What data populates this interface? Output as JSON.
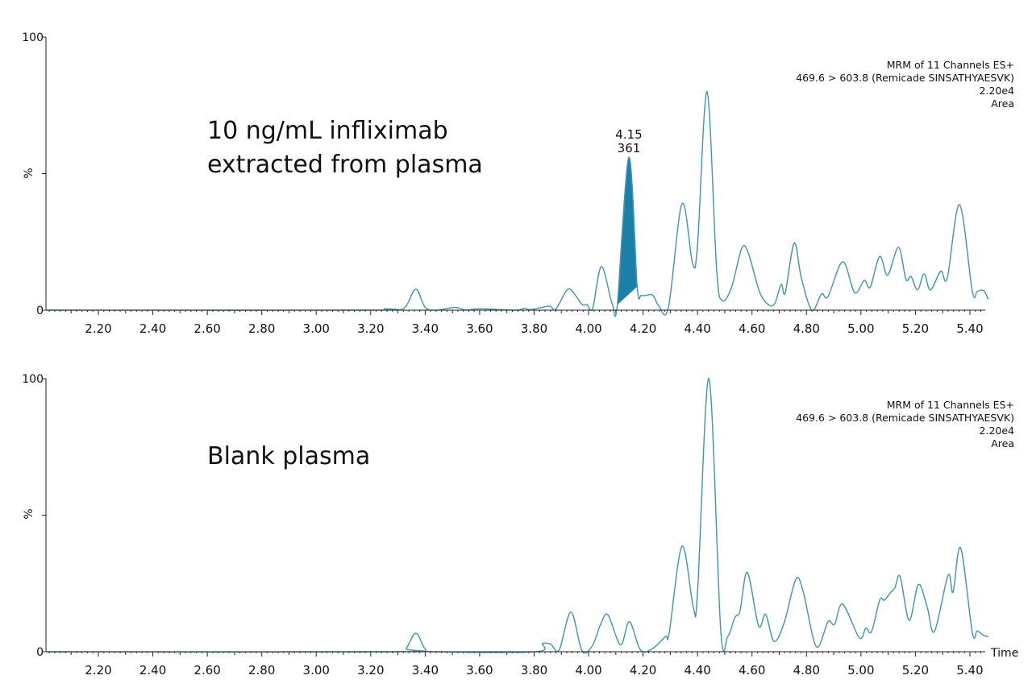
{
  "colors": {
    "trace": "#3f93b3",
    "peak_fill": "#1c7fa8",
    "axis": "#222222"
  },
  "chart_data": [
    {
      "type": "line",
      "annotation_lines": [
        "10 ng/mL infliximab",
        "extracted from plasma"
      ],
      "info_lines": [
        "MRM of 11 Channels ES+",
        "469.6 > 603.8 (Remicade SINSATHYAESVK)",
        "2.20e4",
        "Area"
      ],
      "ylabel": "%",
      "xlabel": "",
      "ytick_labels": [
        "100",
        "0"
      ],
      "ylim": [
        0,
        100
      ],
      "xlim": [
        2.0,
        5.47
      ],
      "xticks": [
        "2.20",
        "2.40",
        "2.60",
        "2.80",
        "3.00",
        "3.20",
        "3.40",
        "3.60",
        "3.80",
        "4.00",
        "4.20",
        "4.40",
        "4.60",
        "4.80",
        "5.00",
        "5.20",
        "5.40"
      ],
      "integrated_peak": {
        "rt_label": "4.15",
        "area_label": "361",
        "start": 4.106,
        "end": 4.178,
        "apex_rt": 4.148
      },
      "points": [
        [
          2.0,
          0
        ],
        [
          3.2,
          0
        ],
        [
          3.25,
          0.5
        ],
        [
          3.3,
          0
        ],
        [
          3.33,
          1.5
        ],
        [
          3.366,
          7.7
        ],
        [
          3.4,
          1
        ],
        [
          3.44,
          0
        ],
        [
          3.51,
          1
        ],
        [
          3.55,
          0
        ],
        [
          3.6,
          0.5
        ],
        [
          3.733,
          0
        ],
        [
          3.763,
          0.7
        ],
        [
          3.79,
          0.2
        ],
        [
          3.855,
          1.5
        ],
        [
          3.879,
          0.3
        ],
        [
          3.923,
          7.6
        ],
        [
          3.952,
          5.4
        ],
        [
          3.976,
          2
        ],
        [
          3.994,
          2
        ],
        [
          4.015,
          0.7
        ],
        [
          4.047,
          16
        ],
        [
          4.086,
          2.5
        ],
        [
          4.106,
          2.2
        ],
        [
          4.148,
          56
        ],
        [
          4.178,
          8.8
        ],
        [
          4.195,
          5.4
        ],
        [
          4.234,
          5.6
        ],
        [
          4.257,
          1.7
        ],
        [
          4.293,
          1
        ],
        [
          4.343,
          39
        ],
        [
          4.382,
          17
        ],
        [
          4.4,
          24
        ],
        [
          4.435,
          80
        ],
        [
          4.47,
          15
        ],
        [
          4.491,
          3.6
        ],
        [
          4.525,
          8.4
        ],
        [
          4.562,
          22.6
        ],
        [
          4.586,
          21
        ],
        [
          4.627,
          6.9
        ],
        [
          4.66,
          2
        ],
        [
          4.684,
          2.5
        ],
        [
          4.707,
          9.4
        ],
        [
          4.722,
          6.4
        ],
        [
          4.755,
          24.6
        ],
        [
          4.781,
          11.8
        ],
        [
          4.82,
          0
        ],
        [
          4.855,
          5.9
        ],
        [
          4.879,
          5
        ],
        [
          4.933,
          17.7
        ],
        [
          4.977,
          6.4
        ],
        [
          5.012,
          10.9
        ],
        [
          5.034,
          8.4
        ],
        [
          5.069,
          19.7
        ],
        [
          5.098,
          12.8
        ],
        [
          5.138,
          23
        ],
        [
          5.165,
          11.3
        ],
        [
          5.184,
          12.3
        ],
        [
          5.208,
          7.4
        ],
        [
          5.232,
          13.3
        ],
        [
          5.255,
          7.4
        ],
        [
          5.293,
          14.3
        ],
        [
          5.317,
          11.8
        ],
        [
          5.362,
          38.6
        ],
        [
          5.409,
          6.9
        ],
        [
          5.427,
          6.9
        ],
        [
          5.45,
          7.2
        ],
        [
          5.468,
          3.9
        ]
      ]
    },
    {
      "type": "line",
      "annotation_lines": [
        "Blank plasma"
      ],
      "info_lines": [
        "MRM of 11 Channels ES+",
        "469.6 > 603.8 (Remicade SINSATHYAESVK)",
        "2.20e4",
        "Area"
      ],
      "ylabel": "%",
      "xlabel": "Time",
      "ytick_labels": [
        "100",
        "0"
      ],
      "ylim": [
        0,
        100
      ],
      "xlim": [
        2.0,
        5.47
      ],
      "xticks": [
        "2.20",
        "2.40",
        "2.60",
        "2.80",
        "3.00",
        "3.20",
        "3.40",
        "3.60",
        "3.80",
        "4.00",
        "4.20",
        "4.40",
        "4.60",
        "4.80",
        "5.00",
        "5.20",
        "5.40"
      ],
      "points": [
        [
          2.0,
          0
        ],
        [
          3.3,
          0
        ],
        [
          3.33,
          1.2
        ],
        [
          3.366,
          6.8
        ],
        [
          3.4,
          1
        ],
        [
          3.44,
          0
        ],
        [
          3.806,
          0
        ],
        [
          3.831,
          3
        ],
        [
          3.861,
          2.7
        ],
        [
          3.892,
          0.7
        ],
        [
          3.935,
          14.5
        ],
        [
          3.976,
          0.3
        ],
        [
          4.014,
          2.2
        ],
        [
          4.044,
          10
        ],
        [
          4.071,
          13.5
        ],
        [
          4.117,
          2.5
        ],
        [
          4.15,
          11
        ],
        [
          4.19,
          0.7
        ],
        [
          4.233,
          1
        ],
        [
          4.282,
          5.6
        ],
        [
          4.296,
          7
        ],
        [
          4.343,
          38.6
        ],
        [
          4.385,
          16
        ],
        [
          4.4,
          22
        ],
        [
          4.442,
          100
        ],
        [
          4.485,
          8
        ],
        [
          4.511,
          5.6
        ],
        [
          4.537,
          12.5
        ],
        [
          4.556,
          15
        ],
        [
          4.583,
          29
        ],
        [
          4.624,
          9.5
        ],
        [
          4.65,
          13.7
        ],
        [
          4.681,
          3.8
        ],
        [
          4.718,
          10.6
        ],
        [
          4.761,
          26.5
        ],
        [
          4.788,
          22
        ],
        [
          4.836,
          1.9
        ],
        [
          4.879,
          11
        ],
        [
          4.903,
          10
        ],
        [
          4.933,
          17.4
        ],
        [
          4.994,
          5.1
        ],
        [
          5.018,
          8.6
        ],
        [
          5.039,
          7.4
        ],
        [
          5.069,
          18.9
        ],
        [
          5.086,
          18.9
        ],
        [
          5.11,
          21.8
        ],
        [
          5.125,
          23.5
        ],
        [
          5.144,
          27.5
        ],
        [
          5.177,
          11.5
        ],
        [
          5.211,
          24.6
        ],
        [
          5.243,
          16.5
        ],
        [
          5.27,
          7.4
        ],
        [
          5.32,
          28
        ],
        [
          5.338,
          21.8
        ],
        [
          5.366,
          38
        ],
        [
          5.409,
          7
        ],
        [
          5.427,
          7.6
        ],
        [
          5.45,
          6
        ],
        [
          5.468,
          5.6
        ]
      ]
    }
  ]
}
